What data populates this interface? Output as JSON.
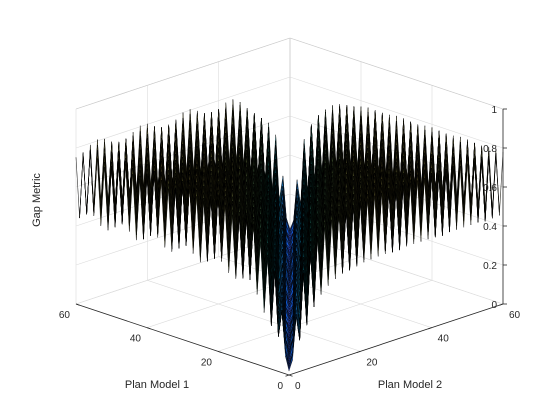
{
  "chart_data": {
    "type": "surface",
    "title": "",
    "xlabel": "Plan Model 1",
    "ylabel": "Plan Model 2",
    "zlabel": "Gap Metric",
    "xlim": [
      0,
      60
    ],
    "ylim": [
      0,
      60
    ],
    "zlim": [
      0,
      1
    ],
    "xticks": [
      "0",
      "20",
      "40",
      "60"
    ],
    "yticks": [
      "0",
      "20",
      "40",
      "60"
    ],
    "zticks": [
      "0",
      "0.2",
      "0.4",
      "0.6",
      "0.8",
      "1"
    ],
    "grid": true,
    "colormap": "parula",
    "grid_size": [
      61,
      61
    ],
    "surface_description": "Gap metric between plant models i and j on a 61x61 grid: near 0 along the diagonal i=j, rising to about 0.6-0.7 away from it, with strong oscillation between neighbouring models producing jagged peaks up to about 0.85.",
    "estimated_range": {
      "min": 0.0,
      "max": 0.85
    }
  },
  "colors": {
    "axis": "#262626",
    "grid": "#dcdcdc",
    "edge": "#000000",
    "colormap_stops": [
      "#352a87",
      "#0f5cdd",
      "#1481d6",
      "#06a4ca",
      "#2eb7a4",
      "#87bf77",
      "#d1bb59",
      "#fec832",
      "#f9fb0e"
    ]
  }
}
